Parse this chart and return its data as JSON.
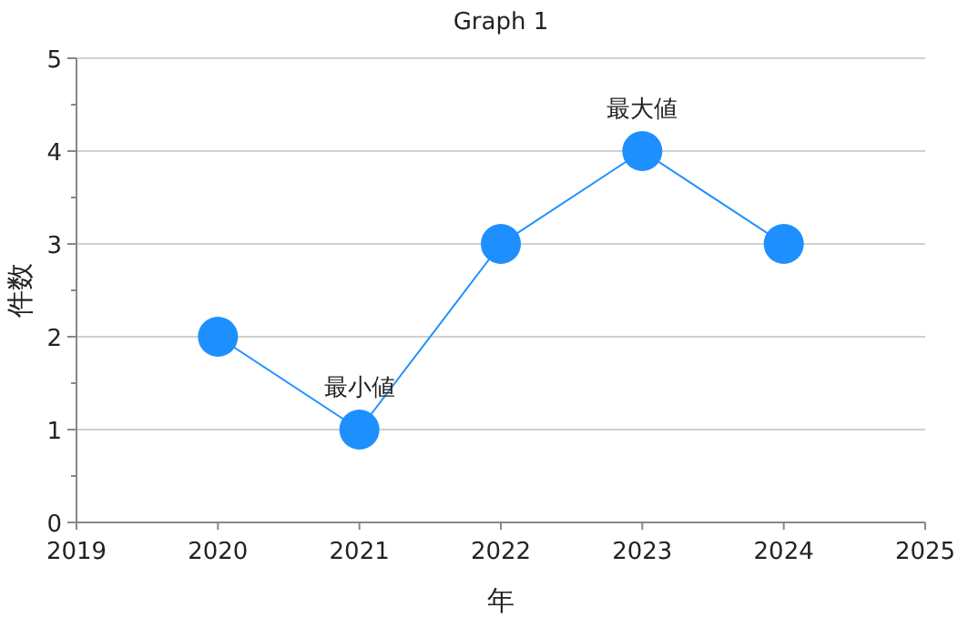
{
  "chart_data": {
    "type": "line",
    "title": "Graph 1",
    "xlabel": "年",
    "ylabel": "件数",
    "x": [
      2020,
      2021,
      2022,
      2023,
      2024
    ],
    "series": [
      {
        "color": "#1e8fff",
        "values": [
          2,
          1,
          3,
          4,
          3
        ]
      }
    ],
    "xlim": [
      2019,
      2025
    ],
    "xticks": [
      2019,
      2020,
      2021,
      2022,
      2023,
      2024,
      2025
    ],
    "ylim": [
      0,
      5
    ],
    "yticks": [
      0,
      {
        "value": 0.5,
        "label": null
      },
      1,
      {
        "value": 1.5,
        "label": null
      },
      2,
      {
        "value": 2.5,
        "label": null
      },
      3,
      {
        "value": 3.5,
        "label": null
      },
      4,
      {
        "value": 4.5,
        "label": null
      },
      5
    ],
    "grid": "y",
    "marker": "circle",
    "line_style": "solid",
    "annotations": [
      {
        "text": "最大値",
        "x": 2023,
        "y": 4
      },
      {
        "text": "最小値",
        "x": 2021,
        "y": 1
      }
    ]
  }
}
